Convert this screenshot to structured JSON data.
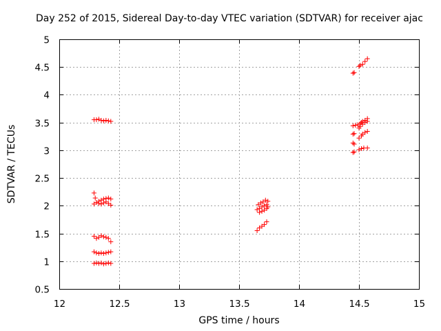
{
  "chart_data": {
    "type": "scatter",
    "title": "Day 252 of 2015, Sidereal Day-to-day VTEC variation (SDTVAR) for receiver ajac",
    "xlabel": "GPS time / hours",
    "ylabel": "SDTVAR / TECUs",
    "xlim": [
      12,
      15
    ],
    "ylim": [
      0.5,
      5
    ],
    "xticks": [
      "12",
      "12.5",
      "13",
      "13.5",
      "14",
      "14.5",
      "15"
    ],
    "yticks": [
      "0.5",
      "1",
      "1.5",
      "2",
      "2.5",
      "3",
      "3.5",
      "4",
      "4.5",
      "5"
    ],
    "grid": true,
    "marker": "+",
    "color": "#ff0000",
    "series": [
      {
        "name": "SDTVAR",
        "points": [
          [
            12.29,
            3.55
          ],
          [
            12.31,
            3.55
          ],
          [
            12.33,
            3.56
          ],
          [
            12.35,
            3.54
          ],
          [
            12.37,
            3.53
          ],
          [
            12.39,
            3.54
          ],
          [
            12.41,
            3.53
          ],
          [
            12.43,
            3.52
          ],
          [
            12.29,
            2.23
          ],
          [
            12.3,
            2.14
          ],
          [
            12.29,
            2.03
          ],
          [
            12.31,
            2.06
          ],
          [
            12.33,
            2.08
          ],
          [
            12.35,
            2.1
          ],
          [
            12.37,
            2.12
          ],
          [
            12.39,
            2.13
          ],
          [
            12.41,
            2.14
          ],
          [
            12.43,
            2.12
          ],
          [
            12.33,
            2.04
          ],
          [
            12.35,
            2.03
          ],
          [
            12.37,
            2.05
          ],
          [
            12.39,
            2.07
          ],
          [
            12.41,
            2.04
          ],
          [
            12.43,
            2.01
          ],
          [
            12.29,
            1.45
          ],
          [
            12.31,
            1.41
          ],
          [
            12.33,
            1.43
          ],
          [
            12.35,
            1.46
          ],
          [
            12.37,
            1.44
          ],
          [
            12.39,
            1.43
          ],
          [
            12.41,
            1.41
          ],
          [
            12.43,
            1.35
          ],
          [
            12.29,
            1.17
          ],
          [
            12.31,
            1.15
          ],
          [
            12.33,
            1.14
          ],
          [
            12.35,
            1.15
          ],
          [
            12.37,
            1.14
          ],
          [
            12.39,
            1.15
          ],
          [
            12.41,
            1.16
          ],
          [
            12.43,
            1.17
          ],
          [
            12.29,
            0.96
          ],
          [
            12.31,
            0.97
          ],
          [
            12.33,
            0.96
          ],
          [
            12.35,
            0.97
          ],
          [
            12.37,
            0.95
          ],
          [
            12.39,
            0.96
          ],
          [
            12.41,
            0.97
          ],
          [
            12.43,
            0.96
          ],
          [
            13.65,
            1.55
          ],
          [
            13.67,
            1.6
          ],
          [
            13.69,
            1.63
          ],
          [
            13.71,
            1.66
          ],
          [
            13.73,
            1.71
          ],
          [
            13.65,
            1.93
          ],
          [
            13.67,
            1.95
          ],
          [
            13.69,
            1.98
          ],
          [
            13.71,
            2.0
          ],
          [
            13.73,
            2.02
          ],
          [
            13.66,
            2.02
          ],
          [
            13.68,
            2.05
          ],
          [
            13.7,
            2.07
          ],
          [
            13.72,
            2.1
          ],
          [
            13.74,
            2.08
          ],
          [
            13.67,
            1.88
          ],
          [
            13.69,
            1.9
          ],
          [
            13.71,
            1.92
          ],
          [
            13.73,
            1.95
          ],
          [
            13.74,
            1.98
          ],
          [
            14.45,
            4.39
          ],
          [
            14.46,
            4.4
          ],
          [
            14.5,
            4.51
          ],
          [
            14.51,
            4.53
          ],
          [
            14.53,
            4.55
          ],
          [
            14.55,
            4.6
          ],
          [
            14.57,
            4.65
          ],
          [
            14.45,
            3.44
          ],
          [
            14.47,
            3.45
          ],
          [
            14.49,
            3.46
          ],
          [
            14.51,
            3.48
          ],
          [
            14.52,
            3.5
          ],
          [
            14.53,
            3.52
          ],
          [
            14.55,
            3.54
          ],
          [
            14.57,
            3.57
          ],
          [
            14.5,
            3.4
          ],
          [
            14.51,
            3.43
          ],
          [
            14.53,
            3.47
          ],
          [
            14.55,
            3.5
          ],
          [
            14.57,
            3.52
          ],
          [
            14.45,
            3.29
          ],
          [
            14.46,
            3.3
          ],
          [
            14.5,
            3.22
          ],
          [
            14.52,
            3.26
          ],
          [
            14.53,
            3.29
          ],
          [
            14.55,
            3.32
          ],
          [
            14.57,
            3.34
          ],
          [
            14.45,
            3.13
          ],
          [
            14.46,
            3.11
          ],
          [
            14.45,
            2.96
          ],
          [
            14.46,
            2.97
          ],
          [
            14.5,
            3.01
          ],
          [
            14.52,
            3.03
          ],
          [
            14.54,
            3.04
          ],
          [
            14.57,
            3.04
          ]
        ]
      }
    ]
  }
}
